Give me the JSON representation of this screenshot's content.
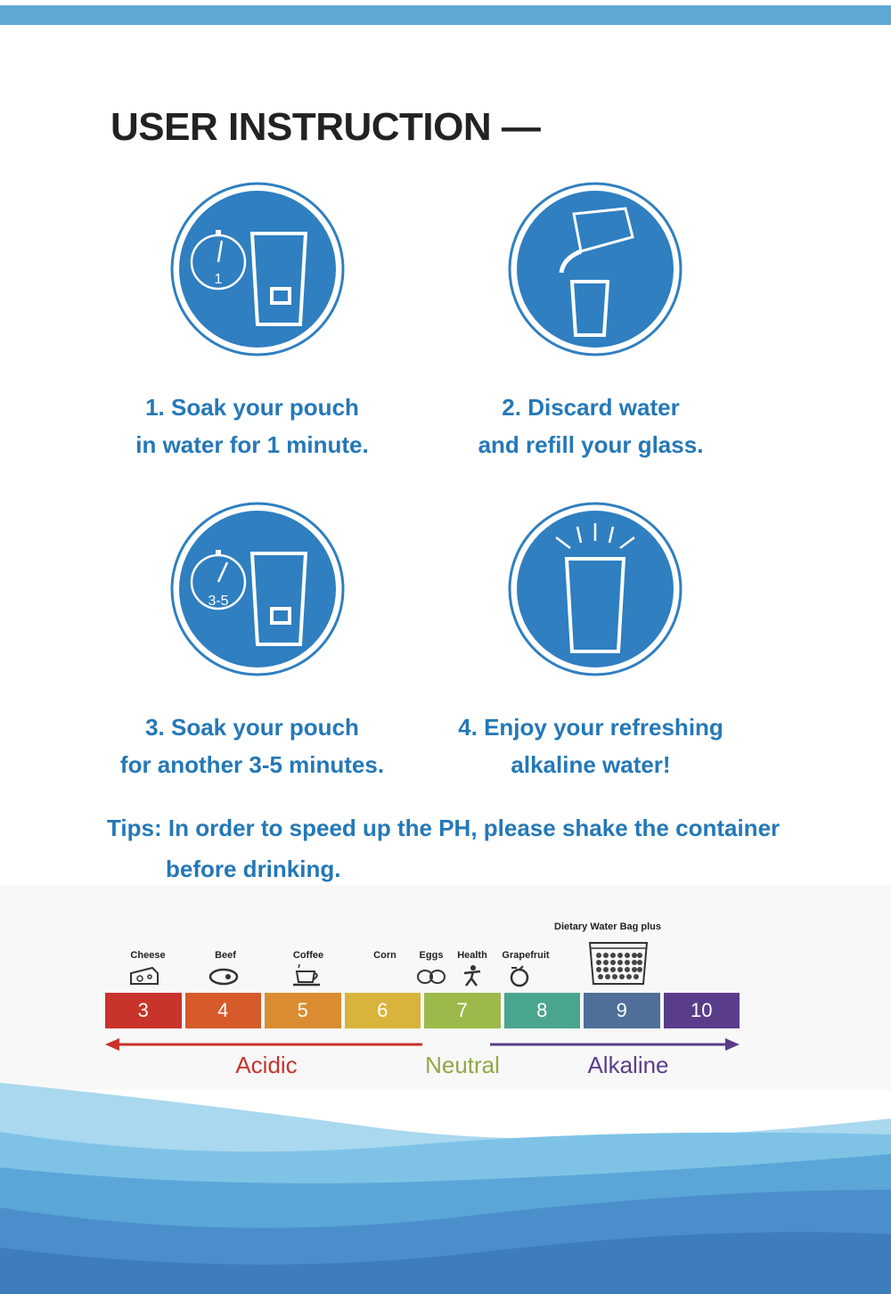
{
  "page": {
    "title": "USER INSTRUCTION —"
  },
  "steps": [
    {
      "line1": "1. Soak your pouch",
      "line2": "in water for 1 minute.",
      "icon": "stopwatch-glass-icon",
      "timer": "1"
    },
    {
      "line1": "2. Discard water",
      "line2": "and refill your glass.",
      "icon": "pour-water-icon"
    },
    {
      "line1": "3. Soak your pouch",
      "line2": "for another 3-5 minutes.",
      "icon": "stopwatch-glass-icon",
      "timer": "3-5"
    },
    {
      "line1": "4. Enjoy your refreshing",
      "line2": "alkaline water!",
      "icon": "glass-sparkle-icon"
    }
  ],
  "tips": {
    "line1": "Tips: In order to speed up the PH, please shake the container",
    "line2": "before drinking."
  },
  "ph_scale": {
    "values": [
      "3",
      "4",
      "5",
      "6",
      "7",
      "8",
      "9",
      "10"
    ],
    "colors": [
      "#c8332b",
      "#d65a2a",
      "#d98d30",
      "#d8b43c",
      "#9cba4c",
      "#4aa58e",
      "#4f6f98",
      "#5a3d8a"
    ],
    "foods": [
      {
        "label": "Cheese",
        "icon": "cheese-icon"
      },
      {
        "label": "Beef",
        "icon": "beef-icon"
      },
      {
        "label": "Coffee",
        "icon": "coffee-icon"
      },
      {
        "label": "Corn",
        "icon": "corn-icon"
      },
      {
        "label": "Eggs",
        "icon": "eggs-icon"
      },
      {
        "label": "Health",
        "icon": "health-icon"
      },
      {
        "label": "Grapefruit",
        "icon": "grapefruit-icon"
      }
    ],
    "bag_label": "Dietary Water Bag plus",
    "zones": {
      "acidic": {
        "label": "Acidic",
        "color": "#c8332b"
      },
      "neutral": {
        "label": "Neutral",
        "color": "#8fa845"
      },
      "alkaline": {
        "label": "Alkaline",
        "color": "#5a3d8a"
      }
    }
  },
  "colors": {
    "accent": "#2478b8",
    "circle": "#2f7fc1",
    "top_bar": "#5fa8d6"
  }
}
